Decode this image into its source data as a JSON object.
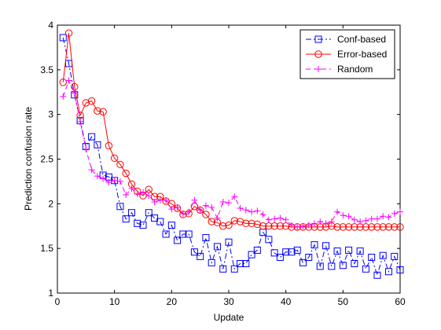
{
  "chart_data": {
    "type": "line",
    "title": "",
    "xlabel": "Update",
    "ylabel": "Prediction confusion rate",
    "xlim": [
      0,
      60
    ],
    "ylim": [
      1,
      4
    ],
    "xticks": [
      0,
      10,
      20,
      30,
      40,
      50,
      60
    ],
    "yticks": [
      1,
      1.5,
      2,
      2.5,
      3,
      3.5,
      4
    ],
    "xtick_labels": [
      "0",
      "10",
      "20",
      "30",
      "40",
      "50",
      "60"
    ],
    "ytick_labels": [
      "1",
      "1.5",
      "2",
      "2.5",
      "3",
      "3.5",
      "4"
    ],
    "grid": false,
    "legend_position": "top-right",
    "x": [
      1,
      2,
      3,
      4,
      5,
      6,
      7,
      8,
      9,
      10,
      11,
      12,
      13,
      14,
      15,
      16,
      17,
      18,
      19,
      20,
      21,
      22,
      23,
      24,
      25,
      26,
      27,
      28,
      29,
      30,
      31,
      32,
      33,
      34,
      35,
      36,
      37,
      38,
      39,
      40,
      41,
      42,
      43,
      44,
      45,
      46,
      47,
      48,
      49,
      50,
      51,
      52,
      53,
      54,
      55,
      56,
      57,
      58,
      59,
      60
    ],
    "series": [
      {
        "name": "Conf-based",
        "color": "#0000ff",
        "line_style": "dash-dot",
        "marker": "square",
        "values": [
          3.86,
          3.57,
          3.22,
          2.93,
          2.64,
          2.75,
          2.66,
          2.32,
          2.3,
          2.26,
          1.97,
          1.83,
          1.9,
          1.78,
          1.76,
          1.9,
          1.84,
          1.8,
          1.66,
          1.76,
          1.59,
          1.66,
          1.66,
          1.46,
          1.41,
          1.62,
          1.34,
          1.52,
          1.27,
          1.57,
          1.27,
          1.33,
          1.33,
          1.43,
          1.48,
          1.68,
          1.6,
          1.45,
          1.4,
          1.46,
          1.46,
          1.48,
          1.34,
          1.4,
          1.54,
          1.3,
          1.53,
          1.3,
          1.47,
          1.31,
          1.48,
          1.33,
          1.47,
          1.27,
          1.4,
          1.2,
          1.42,
          1.24,
          1.41,
          1.26
        ]
      },
      {
        "name": "Error-based",
        "color": "#ff0000",
        "line_style": "solid",
        "marker": "circle",
        "values": [
          3.36,
          3.91,
          3.31,
          2.99,
          3.13,
          3.15,
          3.04,
          3.03,
          2.65,
          2.51,
          2.44,
          2.34,
          2.22,
          2.14,
          2.09,
          2.16,
          2.08,
          2.08,
          2.03,
          2.0,
          1.95,
          1.88,
          1.89,
          1.97,
          1.93,
          1.88,
          1.8,
          1.79,
          1.75,
          1.76,
          1.81,
          1.8,
          1.78,
          1.78,
          1.77,
          1.75,
          1.75,
          1.75,
          1.75,
          1.75,
          1.74,
          1.74,
          1.74,
          1.74,
          1.74,
          1.74,
          1.74,
          1.75,
          1.74,
          1.74,
          1.74,
          1.74,
          1.74,
          1.74,
          1.74,
          1.74,
          1.74,
          1.74,
          1.74,
          1.74
        ]
      },
      {
        "name": "Random",
        "color": "#ff00ff",
        "line_style": "dashed",
        "marker": "plus",
        "values": [
          3.2,
          3.38,
          3.24,
          2.92,
          2.61,
          2.38,
          2.31,
          2.28,
          2.24,
          2.26,
          2.25,
          2.1,
          2.17,
          2.11,
          2.13,
          2.09,
          2.02,
          2.04,
          2.04,
          1.94,
          1.96,
          1.89,
          1.91,
          2.04,
          1.93,
          1.98,
          1.96,
          1.84,
          2.02,
          2.01,
          2.08,
          1.95,
          1.93,
          1.91,
          1.92,
          1.88,
          1.82,
          1.83,
          1.84,
          1.82,
          1.76,
          1.74,
          1.75,
          1.76,
          1.78,
          1.8,
          1.78,
          1.8,
          1.91,
          1.87,
          1.86,
          1.82,
          1.8,
          1.81,
          1.83,
          1.83,
          1.86,
          1.85,
          1.89,
          1.91
        ]
      }
    ]
  }
}
